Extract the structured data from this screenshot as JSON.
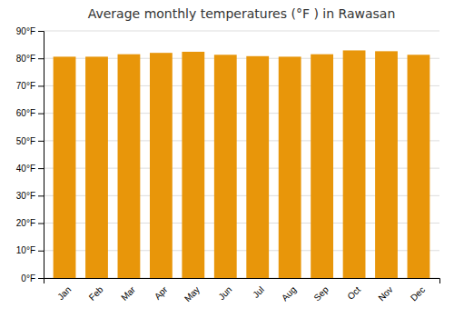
{
  "chart_data": {
    "type": "bar",
    "title": "Average monthly temperatures (°F ) in Rawasan",
    "categories": [
      "Jan",
      "Feb",
      "Mar",
      "Apr",
      "May",
      "Jun",
      "Jul",
      "Aug",
      "Sep",
      "Oct",
      "Nov",
      "Dec"
    ],
    "values": [
      80.6,
      80.6,
      81.5,
      82.0,
      82.4,
      81.3,
      80.8,
      80.6,
      81.5,
      82.9,
      82.6,
      81.3
    ],
    "color": "#E8960A",
    "ylim": [
      0,
      90
    ],
    "yticks": [
      {
        "value": 0,
        "label": "0°F"
      },
      {
        "value": 10,
        "label": "10°F"
      },
      {
        "value": 20,
        "label": "20°F"
      },
      {
        "value": 30,
        "label": "30°F"
      },
      {
        "value": 40,
        "label": "40°F"
      },
      {
        "value": 50,
        "label": "50°F"
      },
      {
        "value": 60,
        "label": "60°F"
      },
      {
        "value": 70,
        "label": "70°F"
      },
      {
        "value": 80,
        "label": "80°F"
      },
      {
        "value": 90,
        "label": "90°F"
      }
    ],
    "grid": true
  }
}
